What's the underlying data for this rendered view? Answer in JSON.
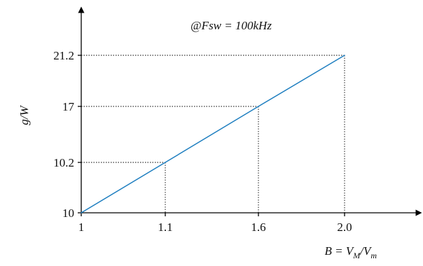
{
  "chart_data": {
    "type": "line",
    "annotation": "@Fsw = 100kHz",
    "ylabel": "g/W",
    "xlabel": {
      "base": "B = V",
      "sub1": "M",
      "slash": "/V",
      "sub2": "m"
    },
    "x_ticks": [
      "1",
      "1.1",
      "1.6",
      "2.0"
    ],
    "y_ticks": [
      "10",
      "10.2",
      "17",
      "21.2"
    ],
    "series": [
      {
        "points": [
          {
            "x": "1",
            "y": "10"
          },
          {
            "x": "1.1",
            "y": "10.2"
          },
          {
            "x": "1.6",
            "y": "17"
          },
          {
            "x": "2.0",
            "y": "21.2"
          }
        ]
      }
    ],
    "color": "#1f7fc0",
    "guides": "dotted lines from points to both axes",
    "scale": "ordinal (tick positions not proportional to values)"
  }
}
